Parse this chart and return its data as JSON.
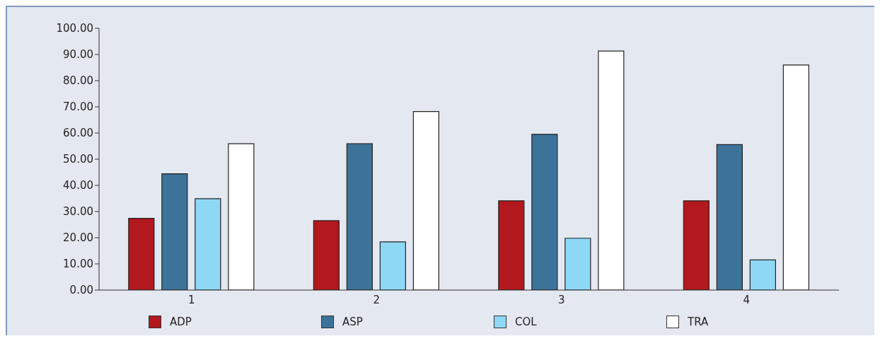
{
  "chart_data": {
    "type": "bar",
    "categories": [
      "1",
      "2",
      "3",
      "4"
    ],
    "series": [
      {
        "name": "ADP",
        "color": "#b2181e",
        "values": [
          27.4,
          26.5,
          34.1,
          34.1
        ]
      },
      {
        "name": "ASP",
        "color": "#3d7399",
        "values": [
          44.4,
          55.9,
          59.5,
          55.6
        ]
      },
      {
        "name": "COL",
        "color": "#8ed8f6",
        "values": [
          34.9,
          18.4,
          19.8,
          11.5
        ]
      },
      {
        "name": "TRA",
        "color": "#ffffff",
        "values": [
          55.9,
          68.2,
          91.3,
          86.0
        ]
      }
    ],
    "ylim": [
      0,
      100
    ],
    "yticks": [
      {
        "value": 0,
        "label": "0.00"
      },
      {
        "value": 10,
        "label": "10.00"
      },
      {
        "value": 20,
        "label": "20.00"
      },
      {
        "value": 30,
        "label": "30.00"
      },
      {
        "value": 40,
        "label": "40.00"
      },
      {
        "value": 50,
        "label": "50.00"
      },
      {
        "value": 60,
        "label": "60.00"
      },
      {
        "value": 70,
        "label": "70.00"
      },
      {
        "value": 80,
        "label": "80.00"
      },
      {
        "value": 90,
        "label": "90.00"
      },
      {
        "value": 100,
        "label": "100.00"
      }
    ],
    "grid": false,
    "legend": "bottom"
  }
}
